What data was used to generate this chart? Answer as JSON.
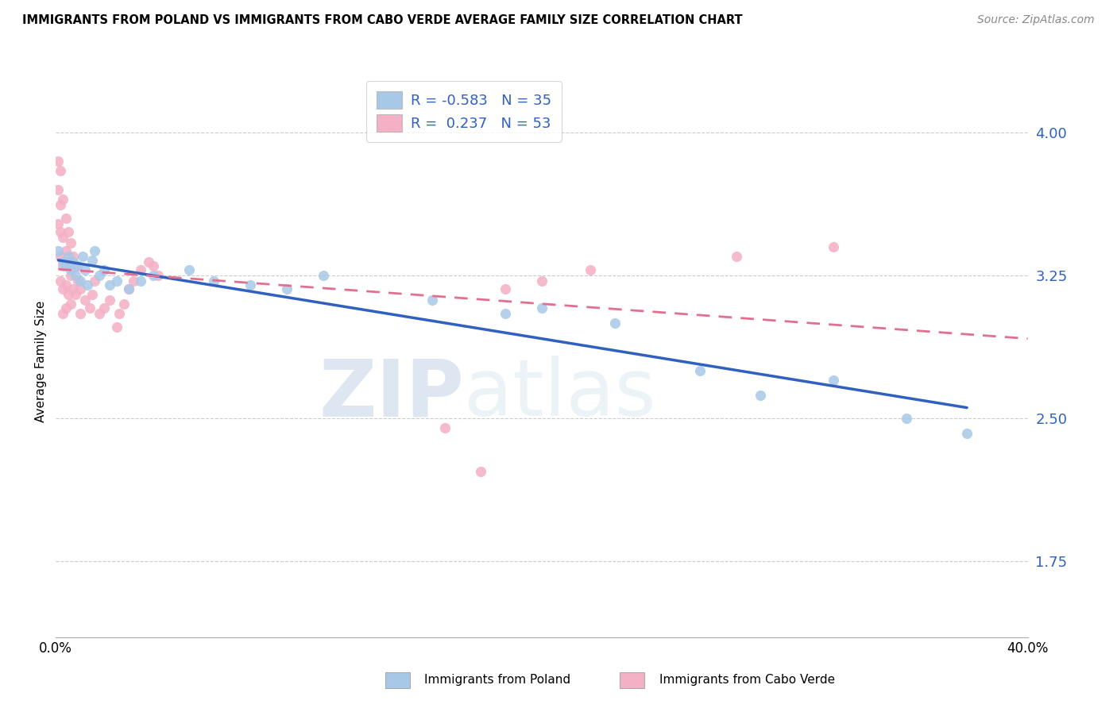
{
  "title": "IMMIGRANTS FROM POLAND VS IMMIGRANTS FROM CABO VERDE AVERAGE FAMILY SIZE CORRELATION CHART",
  "source": "Source: ZipAtlas.com",
  "ylabel": "Average Family Size",
  "yticks": [
    1.75,
    2.5,
    3.25,
    4.0
  ],
  "xlim": [
    0.0,
    0.4
  ],
  "ylim": [
    1.35,
    4.25
  ],
  "legend_label_poland": "Immigrants from Poland",
  "legend_label_caboverde": "Immigrants from Cabo Verde",
  "R_poland": -0.583,
  "N_poland": 35,
  "R_caboverde": 0.237,
  "N_caboverde": 53,
  "poland_color": "#a8c8e8",
  "caboverde_color": "#f4b0c4",
  "poland_line_color": "#3060c0",
  "caboverde_line_color": "#e07090",
  "poland_scatter": [
    [
      0.001,
      3.38
    ],
    [
      0.003,
      3.32
    ],
    [
      0.004,
      3.3
    ],
    [
      0.005,
      3.35
    ],
    [
      0.006,
      3.28
    ],
    [
      0.007,
      3.32
    ],
    [
      0.008,
      3.25
    ],
    [
      0.009,
      3.3
    ],
    [
      0.01,
      3.22
    ],
    [
      0.011,
      3.35
    ],
    [
      0.012,
      3.28
    ],
    [
      0.013,
      3.2
    ],
    [
      0.015,
      3.33
    ],
    [
      0.016,
      3.38
    ],
    [
      0.018,
      3.25
    ],
    [
      0.02,
      3.28
    ],
    [
      0.022,
      3.2
    ],
    [
      0.025,
      3.22
    ],
    [
      0.03,
      3.18
    ],
    [
      0.035,
      3.22
    ],
    [
      0.04,
      3.25
    ],
    [
      0.055,
      3.28
    ],
    [
      0.065,
      3.22
    ],
    [
      0.08,
      3.2
    ],
    [
      0.095,
      3.18
    ],
    [
      0.11,
      3.25
    ],
    [
      0.155,
      3.12
    ],
    [
      0.185,
      3.05
    ],
    [
      0.2,
      3.08
    ],
    [
      0.23,
      3.0
    ],
    [
      0.265,
      2.75
    ],
    [
      0.29,
      2.62
    ],
    [
      0.32,
      2.7
    ],
    [
      0.35,
      2.5
    ],
    [
      0.375,
      2.42
    ]
  ],
  "caboverde_scatter": [
    [
      0.001,
      3.85
    ],
    [
      0.001,
      3.7
    ],
    [
      0.001,
      3.52
    ],
    [
      0.002,
      3.8
    ],
    [
      0.002,
      3.62
    ],
    [
      0.002,
      3.48
    ],
    [
      0.002,
      3.35
    ],
    [
      0.002,
      3.22
    ],
    [
      0.003,
      3.65
    ],
    [
      0.003,
      3.45
    ],
    [
      0.003,
      3.3
    ],
    [
      0.003,
      3.18
    ],
    [
      0.003,
      3.05
    ],
    [
      0.004,
      3.55
    ],
    [
      0.004,
      3.38
    ],
    [
      0.004,
      3.2
    ],
    [
      0.004,
      3.08
    ],
    [
      0.005,
      3.48
    ],
    [
      0.005,
      3.32
    ],
    [
      0.005,
      3.15
    ],
    [
      0.006,
      3.42
    ],
    [
      0.006,
      3.25
    ],
    [
      0.006,
      3.1
    ],
    [
      0.007,
      3.35
    ],
    [
      0.007,
      3.18
    ],
    [
      0.008,
      3.3
    ],
    [
      0.008,
      3.15
    ],
    [
      0.009,
      3.22
    ],
    [
      0.01,
      3.18
    ],
    [
      0.01,
      3.05
    ],
    [
      0.012,
      3.12
    ],
    [
      0.014,
      3.08
    ],
    [
      0.015,
      3.15
    ],
    [
      0.016,
      3.22
    ],
    [
      0.018,
      3.05
    ],
    [
      0.02,
      3.08
    ],
    [
      0.022,
      3.12
    ],
    [
      0.025,
      2.98
    ],
    [
      0.026,
      3.05
    ],
    [
      0.028,
      3.1
    ],
    [
      0.03,
      3.18
    ],
    [
      0.032,
      3.22
    ],
    [
      0.035,
      3.28
    ],
    [
      0.038,
      3.32
    ],
    [
      0.04,
      3.3
    ],
    [
      0.042,
      3.25
    ],
    [
      0.16,
      2.45
    ],
    [
      0.175,
      2.22
    ],
    [
      0.185,
      3.18
    ],
    [
      0.2,
      3.22
    ],
    [
      0.22,
      3.28
    ],
    [
      0.28,
      3.35
    ],
    [
      0.32,
      3.4
    ]
  ],
  "watermark_zip": "ZIP",
  "watermark_atlas": "atlas",
  "background_color": "#ffffff",
  "grid_color": "#cccccc",
  "tick_color": "#3060c0"
}
